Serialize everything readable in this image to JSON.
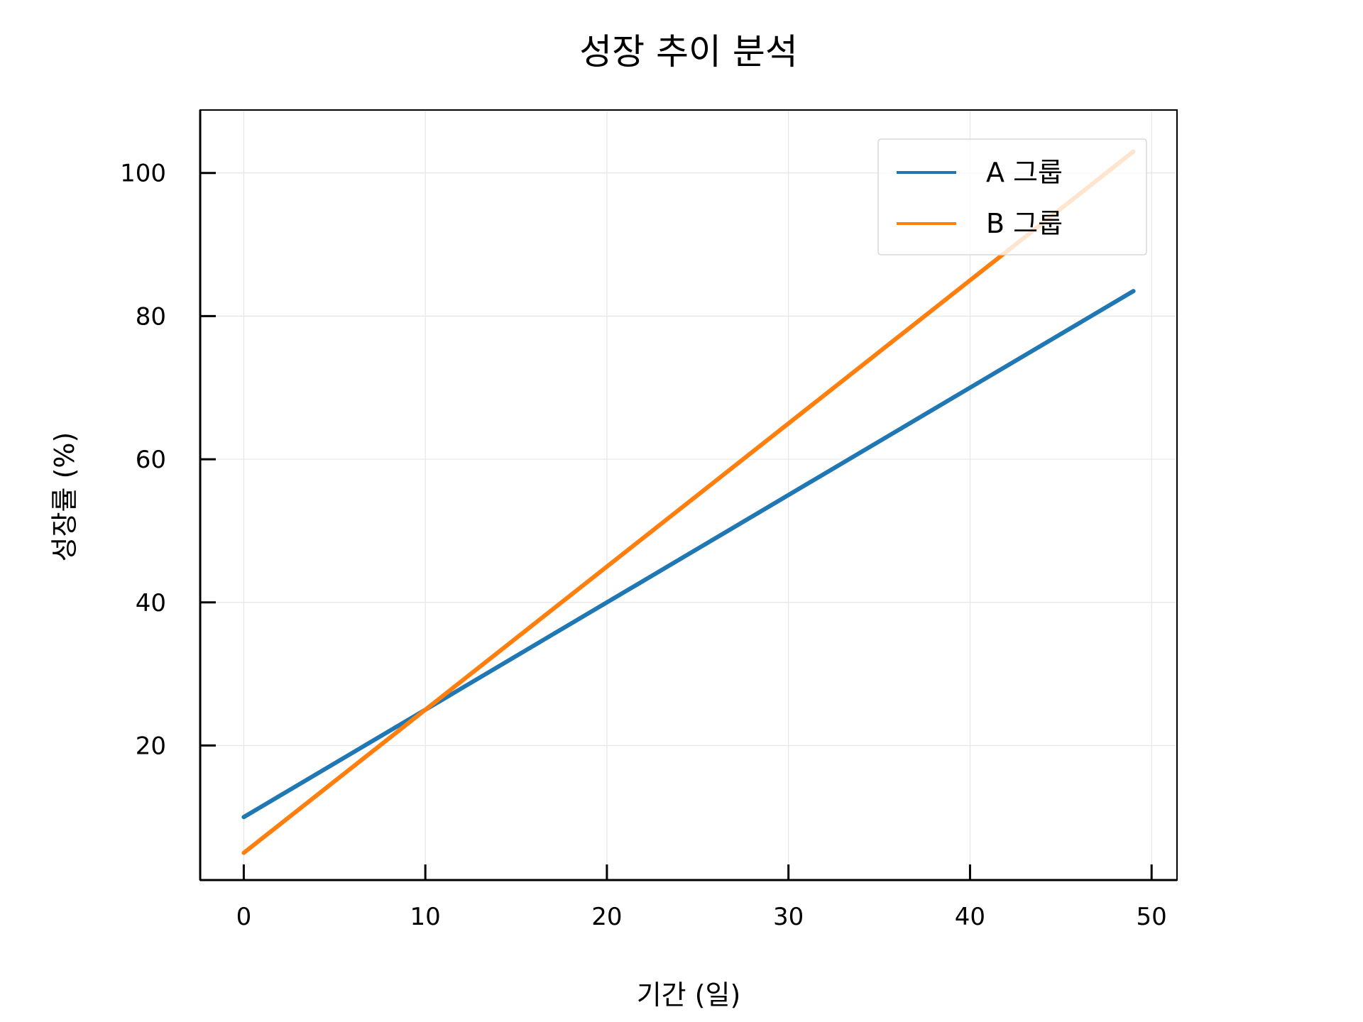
{
  "chart_data": {
    "type": "line",
    "title": "성장 추이 분석",
    "xlabel": "기간 (일)",
    "ylabel": "성장률 (%)",
    "xlim": [
      -2.4,
      51.4
    ],
    "ylim": [
      1.2,
      108.8
    ],
    "xticks": [
      0,
      10,
      20,
      30,
      40,
      50
    ],
    "yticks": [
      20,
      40,
      60,
      80,
      100
    ],
    "grid": true,
    "legend_position": "top-right",
    "series": [
      {
        "name": "A 그룹",
        "color": "#1f77b4",
        "x": [
          0,
          49
        ],
        "y": [
          10,
          83.5
        ]
      },
      {
        "name": "B 그룹",
        "color": "#ff7f0e",
        "x": [
          0,
          49
        ],
        "y": [
          5,
          103
        ]
      }
    ]
  }
}
